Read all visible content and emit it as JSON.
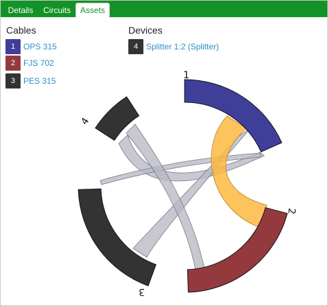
{
  "tabs": [
    {
      "label": "Details",
      "active": false
    },
    {
      "label": "Circuits",
      "active": false
    },
    {
      "label": "Assets",
      "active": true
    }
  ],
  "cables": {
    "heading": "Cables",
    "items": [
      {
        "number": "1",
        "label": "OPS 315",
        "color": "#3f3f9a"
      },
      {
        "number": "2",
        "label": "FJS 702",
        "color": "#943a3e"
      },
      {
        "number": "3",
        "label": "PES 315",
        "color": "#333333"
      }
    ]
  },
  "devices": {
    "heading": "Devices",
    "items": [
      {
        "number": "4",
        "label": "Splitter 1:2 (Splitter)",
        "color": "#333333"
      }
    ]
  },
  "diagram": {
    "segment_labels": [
      "1",
      "2",
      "3",
      "4"
    ],
    "colors": {
      "segment_1": "#3f3f9a",
      "segment_2": "#943a3e",
      "segment_3": "#333333",
      "segment_4": "#333333",
      "ribbon_gray": "#b9b9c4",
      "ribbon_orange": "#fdb83f"
    }
  },
  "accent": "#139227"
}
